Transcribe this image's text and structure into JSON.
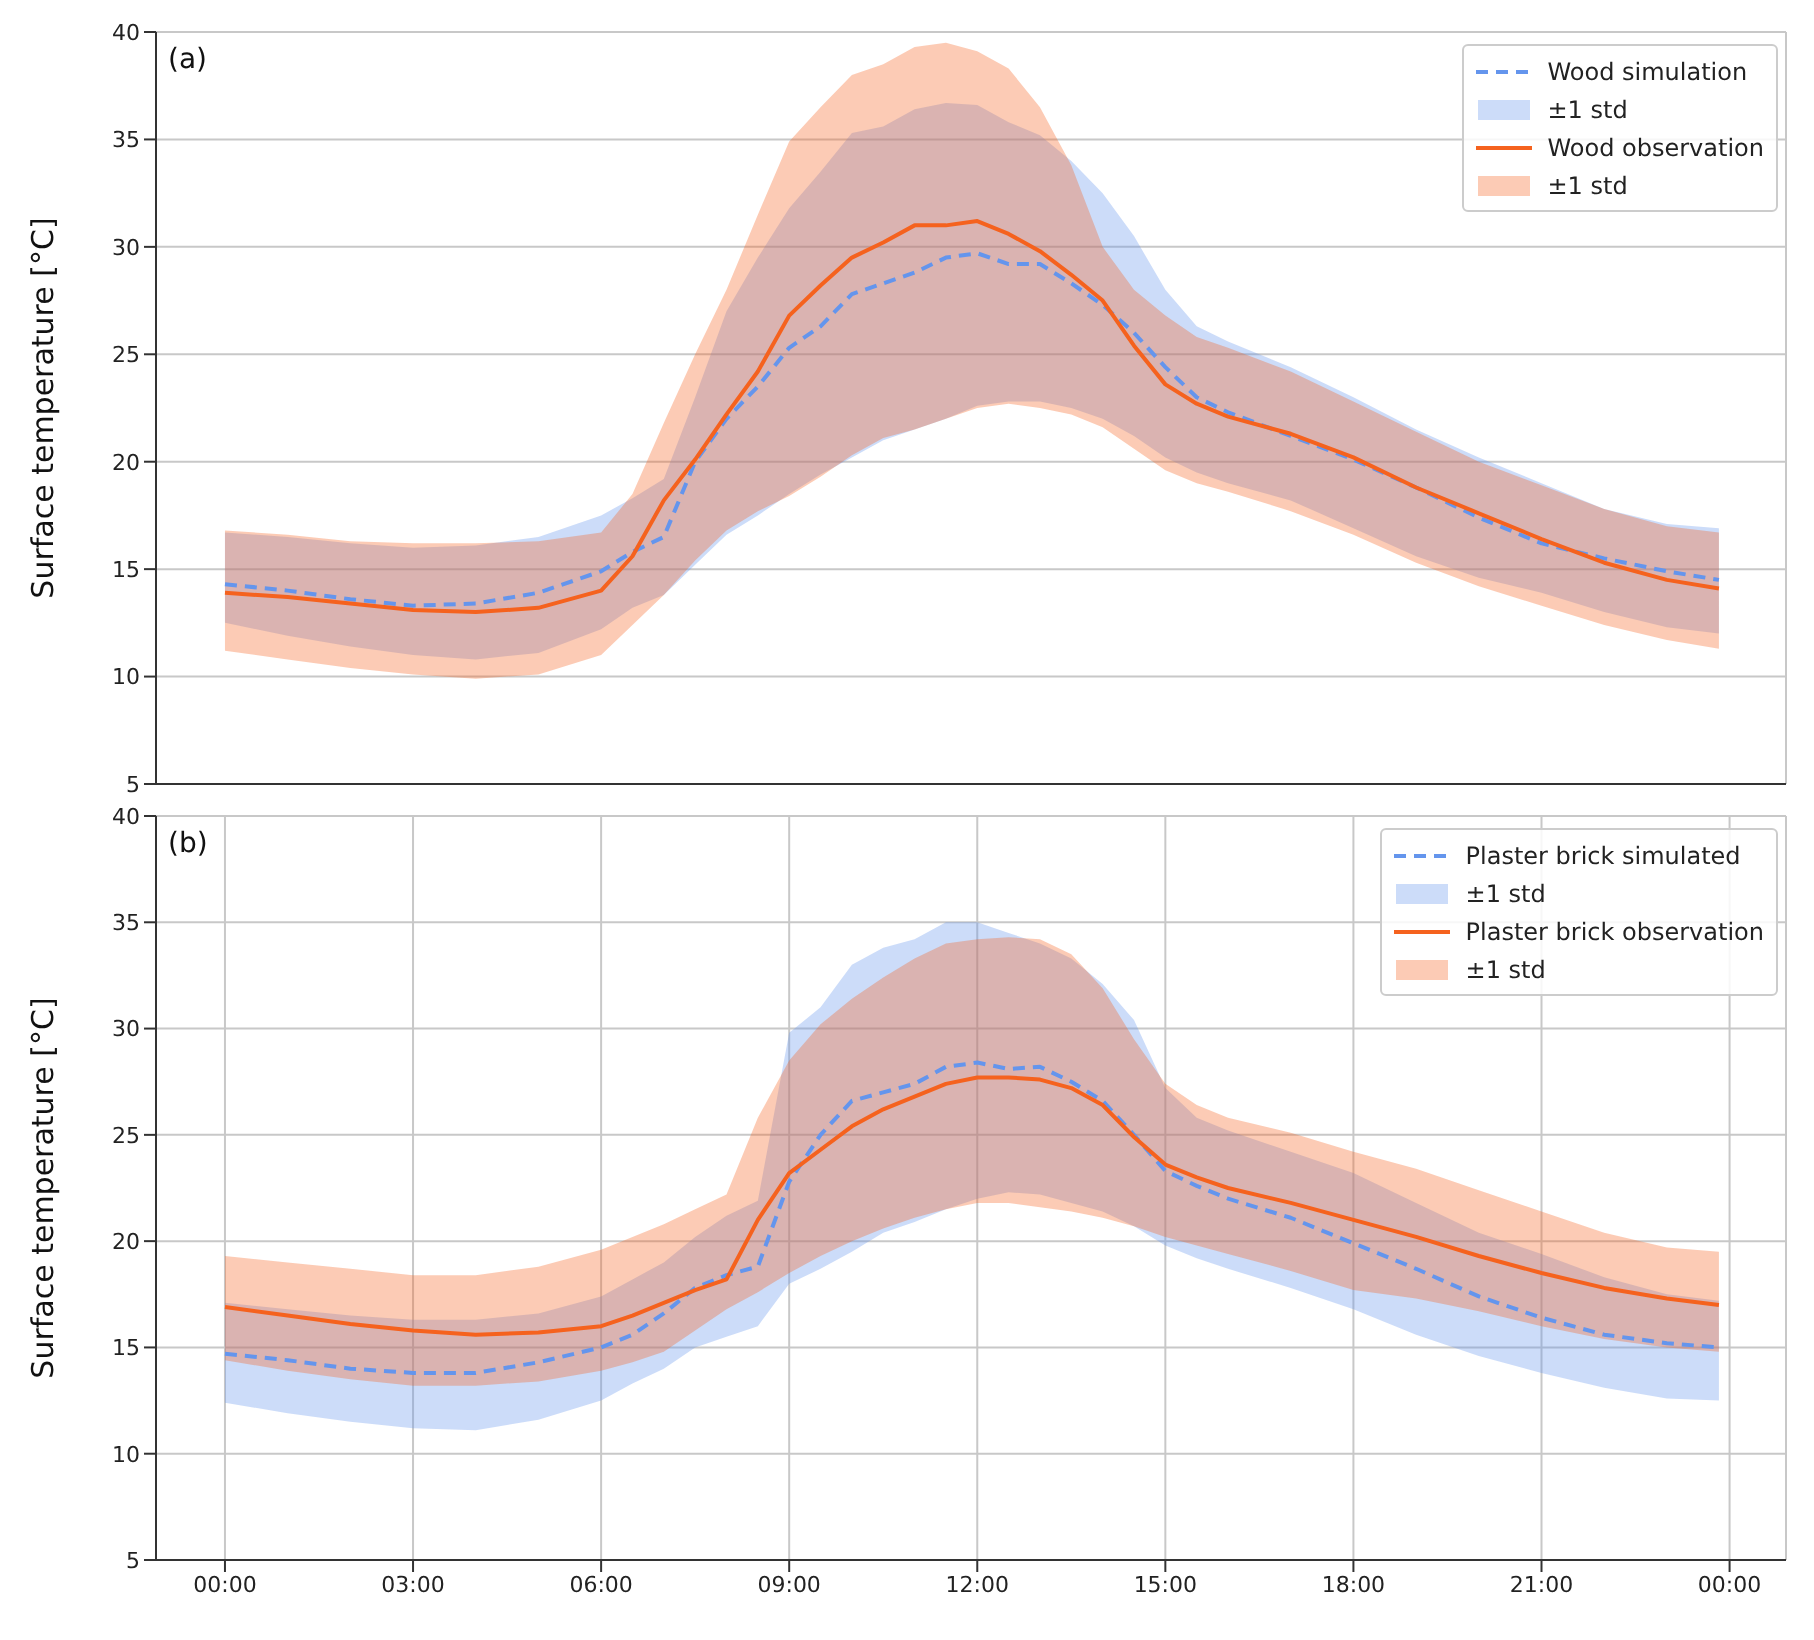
{
  "chart_data": [
    {
      "type": "line",
      "ylabel": "Surface temperature [°C]",
      "annotations": [
        "(a)",
        "±1 std",
        "±1 std"
      ],
      "xlim": [
        -1.1,
        24.9
      ],
      "xticks": [
        {
          "value": 0,
          "label": null
        },
        {
          "value": 3,
          "label": null
        },
        {
          "value": 6,
          "label": null
        },
        {
          "value": 9,
          "label": null
        },
        {
          "value": 12,
          "label": null
        },
        {
          "value": 15,
          "label": null
        },
        {
          "value": 18,
          "label": null
        },
        {
          "value": 21,
          "label": null
        },
        {
          "value": 24,
          "label": null
        }
      ],
      "ylim": [
        5,
        40
      ],
      "yticks": [
        5,
        10,
        15,
        20,
        25,
        30,
        35,
        40
      ],
      "tick_labels": "y",
      "grid": true,
      "legend": "top right",
      "marker": "none",
      "x": [
        0,
        1,
        2,
        3,
        4,
        5,
        6,
        6.5,
        7,
        7.5,
        8,
        8.5,
        9,
        9.5,
        10,
        10.5,
        11,
        11.5,
        12,
        12.5,
        13,
        13.5,
        14,
        14.5,
        15,
        15.5,
        16,
        17,
        18,
        19,
        20,
        21,
        22,
        23,
        23.83
      ],
      "series": [
        {
          "name": "Wood simulation",
          "line_style": "dashed",
          "color": "#6495ed",
          "values": [
            14.3,
            14.0,
            13.6,
            13.3,
            13.4,
            13.9,
            14.9,
            15.8,
            16.5,
            20.0,
            22.0,
            23.5,
            25.3,
            26.3,
            27.8,
            28.3,
            28.8,
            29.5,
            29.7,
            29.2,
            29.2,
            28.3,
            27.3,
            26.0,
            24.4,
            23.0,
            22.3,
            21.2,
            20.1,
            18.8,
            17.4,
            16.2,
            15.5,
            14.9,
            14.5
          ],
          "lower": [
            12.5,
            11.9,
            11.4,
            11.0,
            10.8,
            11.1,
            12.2,
            13.2,
            13.8,
            15.2,
            16.6,
            17.5,
            18.5,
            19.4,
            20.2,
            21.0,
            21.5,
            22.0,
            22.6,
            22.8,
            22.8,
            22.5,
            22.0,
            21.2,
            20.2,
            19.5,
            19.0,
            18.2,
            16.9,
            15.6,
            14.6,
            13.9,
            13.0,
            12.3,
            12.0
          ],
          "upper": [
            16.7,
            16.5,
            16.2,
            16.0,
            16.1,
            16.5,
            17.5,
            18.3,
            19.2,
            23.0,
            27.0,
            29.5,
            31.8,
            33.5,
            35.3,
            35.6,
            36.4,
            36.7,
            36.6,
            35.8,
            35.2,
            34.0,
            32.5,
            30.5,
            28.0,
            26.3,
            25.6,
            24.4,
            23.0,
            21.5,
            20.2,
            19.0,
            17.8,
            17.1,
            16.9
          ]
        },
        {
          "name": "Wood observation",
          "line_style": "solid",
          "color": "#f5621e",
          "values": [
            13.9,
            13.7,
            13.4,
            13.1,
            13.0,
            13.2,
            14.0,
            15.6,
            18.2,
            20.1,
            22.2,
            24.2,
            26.8,
            28.2,
            29.5,
            30.2,
            31.0,
            31.0,
            31.2,
            30.6,
            29.8,
            28.7,
            27.5,
            25.4,
            23.6,
            22.7,
            22.1,
            21.3,
            20.2,
            18.8,
            17.6,
            16.4,
            15.3,
            14.5,
            14.1
          ],
          "lower": [
            11.2,
            10.8,
            10.4,
            10.1,
            9.9,
            10.1,
            11.0,
            12.4,
            13.8,
            15.4,
            16.8,
            17.7,
            18.4,
            19.3,
            20.3,
            21.1,
            21.5,
            22.0,
            22.5,
            22.7,
            22.5,
            22.2,
            21.6,
            20.6,
            19.6,
            19.0,
            18.6,
            17.7,
            16.6,
            15.3,
            14.2,
            13.3,
            12.4,
            11.7,
            11.3
          ],
          "upper": [
            16.8,
            16.6,
            16.3,
            16.2,
            16.2,
            16.3,
            16.7,
            18.5,
            21.8,
            25.0,
            28.0,
            31.5,
            34.9,
            36.5,
            38.0,
            38.5,
            39.3,
            39.5,
            39.1,
            38.3,
            36.5,
            33.8,
            30.0,
            28.0,
            26.8,
            25.8,
            25.3,
            24.2,
            22.8,
            21.4,
            20.0,
            18.9,
            17.8,
            17.0,
            16.7
          ]
        }
      ]
    },
    {
      "type": "line",
      "ylabel": "Surface temperature [°C]",
      "annotations": [
        "(b)",
        "±1 std",
        "±1 std"
      ],
      "xlim": [
        -1.1,
        24.9
      ],
      "xticks": [
        {
          "value": 0,
          "label": "00:00"
        },
        {
          "value": 3,
          "label": "03:00"
        },
        {
          "value": 6,
          "label": "06:00"
        },
        {
          "value": 9,
          "label": "09:00"
        },
        {
          "value": 12,
          "label": "12:00"
        },
        {
          "value": 15,
          "label": "15:00"
        },
        {
          "value": 18,
          "label": "18:00"
        },
        {
          "value": 21,
          "label": "21:00"
        },
        {
          "value": 24,
          "label": "00:00"
        }
      ],
      "ylim": [
        5,
        40
      ],
      "yticks": [
        5,
        10,
        15,
        20,
        25,
        30,
        35,
        40
      ],
      "grid": true,
      "legend": "top right",
      "marker": "none",
      "x": [
        0,
        1,
        2,
        3,
        4,
        5,
        6,
        6.5,
        7,
        7.5,
        8,
        8.5,
        9,
        9.5,
        10,
        10.5,
        11,
        11.5,
        12,
        12.5,
        13,
        13.5,
        14,
        14.5,
        15,
        15.5,
        16,
        17,
        18,
        19,
        20,
        21,
        22,
        23,
        23.83
      ],
      "series": [
        {
          "name": "Plaster brick simulated",
          "line_style": "dashed",
          "color": "#6495ed",
          "values": [
            14.7,
            14.4,
            14.0,
            13.8,
            13.8,
            14.3,
            15.0,
            15.6,
            16.6,
            17.8,
            18.4,
            18.8,
            22.8,
            25.0,
            26.6,
            27.0,
            27.4,
            28.2,
            28.4,
            28.1,
            28.2,
            27.5,
            26.6,
            25.0,
            23.3,
            22.6,
            22.0,
            21.1,
            19.9,
            18.7,
            17.4,
            16.4,
            15.6,
            15.2,
            15.0
          ],
          "lower": [
            12.4,
            11.9,
            11.5,
            11.2,
            11.1,
            11.6,
            12.5,
            13.3,
            14.0,
            15.0,
            15.5,
            16.0,
            18.0,
            18.7,
            19.5,
            20.4,
            20.9,
            21.5,
            22.0,
            22.3,
            22.2,
            21.8,
            21.4,
            20.7,
            19.8,
            19.2,
            18.7,
            17.8,
            16.8,
            15.6,
            14.6,
            13.8,
            13.1,
            12.6,
            12.5
          ],
          "upper": [
            17.1,
            16.8,
            16.5,
            16.3,
            16.3,
            16.6,
            17.4,
            18.2,
            19.0,
            20.2,
            21.2,
            21.9,
            29.8,
            31.0,
            33.0,
            33.8,
            34.2,
            35.0,
            35.0,
            34.5,
            34.0,
            33.3,
            32.1,
            30.4,
            27.2,
            25.8,
            25.2,
            24.2,
            23.2,
            21.8,
            20.4,
            19.4,
            18.3,
            17.5,
            17.2
          ]
        },
        {
          "name": "Plaster brick observation",
          "line_style": "solid",
          "color": "#f5621e",
          "values": [
            16.9,
            16.5,
            16.1,
            15.8,
            15.6,
            15.7,
            16.0,
            16.5,
            17.1,
            17.7,
            18.2,
            21.0,
            23.2,
            24.3,
            25.4,
            26.2,
            26.8,
            27.4,
            27.7,
            27.7,
            27.6,
            27.2,
            26.4,
            24.9,
            23.6,
            23.0,
            22.5,
            21.8,
            21.0,
            20.2,
            19.3,
            18.5,
            17.8,
            17.3,
            17.0
          ],
          "lower": [
            14.4,
            13.9,
            13.5,
            13.2,
            13.2,
            13.4,
            13.9,
            14.3,
            14.8,
            15.8,
            16.8,
            17.6,
            18.5,
            19.3,
            20.0,
            20.6,
            21.1,
            21.5,
            21.8,
            21.8,
            21.6,
            21.4,
            21.1,
            20.7,
            20.2,
            19.8,
            19.4,
            18.6,
            17.7,
            17.3,
            16.7,
            16.0,
            15.4,
            15.0,
            14.8
          ],
          "upper": [
            19.3,
            19.0,
            18.7,
            18.4,
            18.4,
            18.8,
            19.6,
            20.2,
            20.8,
            21.5,
            22.2,
            25.8,
            28.5,
            30.2,
            31.4,
            32.4,
            33.3,
            34.0,
            34.2,
            34.3,
            34.2,
            33.5,
            31.9,
            29.5,
            27.4,
            26.4,
            25.8,
            25.1,
            24.2,
            23.4,
            22.4,
            21.4,
            20.4,
            19.7,
            19.5
          ]
        }
      ]
    }
  ]
}
